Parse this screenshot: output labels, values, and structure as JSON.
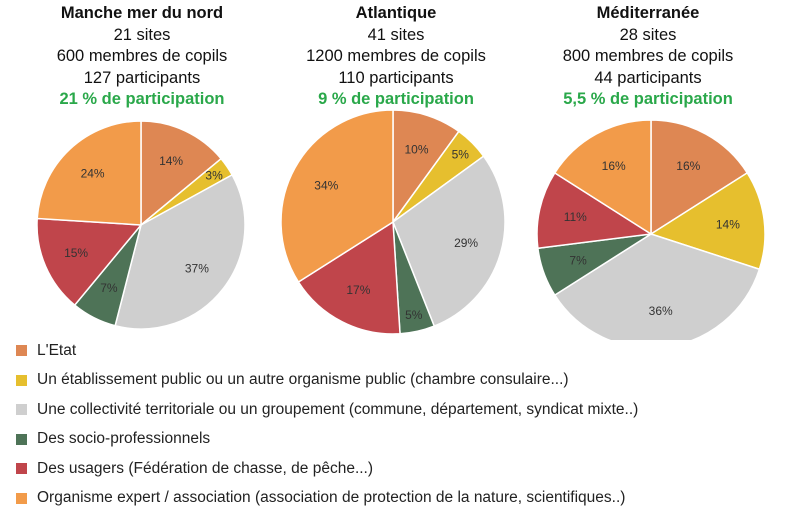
{
  "chart_data": {
    "type": "pie",
    "categories": [
      "L'Etat",
      "Un établissement public ou un autre organisme public (chambre consulaire...)",
      "Une collectivité territoriale ou un groupement (commune, département, syndicat mixte..)",
      "Des socio-professionnels",
      "Des usagers (Fédération de chasse, de pêche...)",
      "Organisme expert / association (association de protection de la nature, scientifiques..)"
    ],
    "colors": [
      "#de8753",
      "#e6bf2e",
      "#cfcfcf",
      "#4e7357",
      "#c0454b",
      "#f29b4a"
    ],
    "charts": [
      {
        "title": "Manche mer du nord",
        "sites": "21 sites",
        "members": "600 membres de copils",
        "participants": "127 participants",
        "participation": "21 % de participation",
        "values": [
          14,
          3,
          37,
          7,
          15,
          24
        ],
        "labels": [
          "14%",
          "3%",
          "37%",
          "7%",
          "15%",
          "24%"
        ]
      },
      {
        "title": "Atlantique",
        "sites": "41 sites",
        "members": "1200 membres de copils",
        "participants": "110 participants",
        "participation": "9 % de participation",
        "values": [
          10,
          5,
          29,
          5,
          17,
          34
        ],
        "labels": [
          "10%",
          "5%",
          "29%",
          "5%",
          "17%",
          "34%"
        ]
      },
      {
        "title": "Méditerranée",
        "sites": "28 sites",
        "members": "800 membres de copils",
        "participants": "44 participants",
        "participation": "5,5 % de participation",
        "values": [
          16,
          14,
          36,
          7,
          11,
          16
        ],
        "labels": [
          "16%",
          "14%",
          "36%",
          "7%",
          "11%",
          "16%"
        ]
      }
    ]
  }
}
